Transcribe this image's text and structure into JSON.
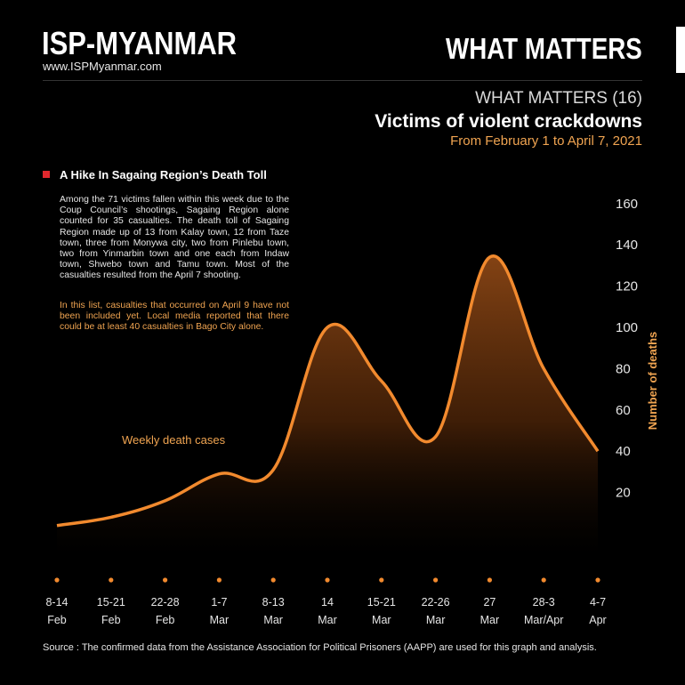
{
  "brand": {
    "title": "ISP-MYANMAR",
    "url": "www.ISPMyanmar.com",
    "header_right": "WHAT MATTERS"
  },
  "heading": {
    "series": "WHAT MATTERS (16)",
    "title": "Victims of violent crackdowns",
    "date_range": "From February 1 to April 7, 2021"
  },
  "section": {
    "heading": "A Hike In Sagaing Region’s Death Toll",
    "body": "Among the 71 victims fallen within this week due to the Coup Council’s shootings, Sagaing Region alone counted for 35 casualties. The death toll of Sagaing Region made up of 13 from Kalay town, 12 from Taze town, three from Monywa city, two from Pinlebu town, two from Yinmarbin town and one each from Indaw town, Shwebo town and Tamu town. Most of the casualties resulted from the April 7 shooting.",
    "note": "In this list, casualties that occurred on April 9 have not been included yet. Local media reported that there could be at least 40 casualties in Bago City alone."
  },
  "source": "Source :   The confirmed data from the Assistance Association for Political Prisoners (AAPP) are used for this graph and analysis.",
  "colors": {
    "accent": "#f0a451",
    "line": "#f28a2e",
    "bullet": "#e0282d",
    "background": "#000000"
  },
  "chart_data": {
    "type": "area",
    "series_label": "Weekly death cases",
    "ylabel": "Number of deaths",
    "categories": [
      {
        "top": "8-14",
        "bottom": "Feb"
      },
      {
        "top": "15-21",
        "bottom": "Feb"
      },
      {
        "top": "22-28",
        "bottom": "Feb"
      },
      {
        "top": "1-7",
        "bottom": "Mar"
      },
      {
        "top": "8-13",
        "bottom": "Mar"
      },
      {
        "top": "14",
        "bottom": "Mar"
      },
      {
        "top": "15-21",
        "bottom": "Mar"
      },
      {
        "top": "22-26",
        "bottom": "Mar"
      },
      {
        "top": "27",
        "bottom": "Mar"
      },
      {
        "top": "28-3",
        "bottom": "Mar/Apr"
      },
      {
        "top": "4-7",
        "bottom": "Apr"
      }
    ],
    "values": [
      4,
      8,
      16,
      29,
      31,
      100,
      74,
      47,
      134,
      80,
      40
    ],
    "yticks": [
      20,
      40,
      60,
      80,
      100,
      120,
      140,
      160
    ],
    "ylim": [
      0,
      160
    ],
    "grid": false,
    "legend": "none"
  }
}
